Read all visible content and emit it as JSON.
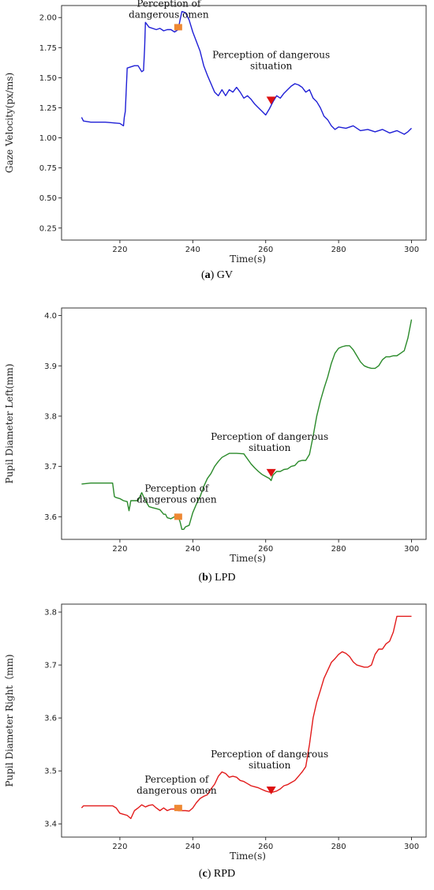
{
  "chart_data": [
    {
      "type": "line",
      "caption_letter": "a",
      "caption_text": "GV",
      "xlabel": "Time(s)",
      "ylabel": "Gaze Velocity(px/ms)",
      "xlim": [
        204,
        304
      ],
      "ylim": [
        0.15,
        2.1
      ],
      "xticks": [
        220,
        240,
        260,
        280,
        300
      ],
      "yticks": [
        0.25,
        0.5,
        0.75,
        1.0,
        1.25,
        1.5,
        1.75,
        2.0
      ],
      "ytick_labels": [
        "0.25",
        "0.50",
        "0.75",
        "1.00",
        "1.25",
        "1.50",
        "1.75",
        "2.00"
      ],
      "color": "#1f1fd6",
      "series": [
        {
          "x": [
            209.5,
            210,
            212,
            216,
            220,
            221,
            221.2,
            221.5,
            222,
            224,
            225,
            226,
            226.5,
            226.8,
            227,
            228,
            230,
            231,
            232,
            233,
            234,
            235,
            236,
            236.5,
            237,
            238,
            239,
            240,
            242,
            243,
            244,
            245,
            246,
            247,
            248,
            249,
            250,
            251,
            252,
            253,
            254,
            255,
            256,
            257,
            258,
            259,
            260,
            261,
            262,
            263,
            264,
            265,
            266,
            267,
            268,
            269,
            270,
            271,
            272,
            273,
            274,
            275,
            276,
            277,
            278,
            279,
            280,
            282,
            284,
            286,
            288,
            290,
            292,
            294,
            296,
            298,
            299,
            300
          ],
          "y": [
            1.17,
            1.14,
            1.13,
            1.13,
            1.12,
            1.1,
            1.17,
            1.22,
            1.58,
            1.6,
            1.6,
            1.55,
            1.56,
            1.75,
            1.96,
            1.92,
            1.9,
            1.91,
            1.89,
            1.9,
            1.9,
            1.88,
            1.9,
            1.98,
            2.05,
            2.04,
            1.98,
            1.88,
            1.72,
            1.6,
            1.52,
            1.45,
            1.38,
            1.35,
            1.4,
            1.35,
            1.4,
            1.38,
            1.42,
            1.38,
            1.33,
            1.35,
            1.32,
            1.28,
            1.25,
            1.22,
            1.19,
            1.24,
            1.3,
            1.35,
            1.33,
            1.37,
            1.4,
            1.43,
            1.45,
            1.44,
            1.42,
            1.38,
            1.4,
            1.33,
            1.3,
            1.25,
            1.18,
            1.15,
            1.1,
            1.07,
            1.09,
            1.08,
            1.1,
            1.06,
            1.07,
            1.05,
            1.07,
            1.04,
            1.06,
            1.03,
            1.05,
            1.08
          ]
        }
      ],
      "markers": [
        {
          "x": 236,
          "y": 1.92,
          "color": "#ee8833",
          "shape": "square",
          "label_lines": [
            "Perception of",
            "dangerous omen"
          ]
        },
        {
          "x": 261.5,
          "y": 1.31,
          "color": "#dd1111",
          "shape": "triangle",
          "label_lines": [
            "Perception of dangerous",
            "situation"
          ]
        }
      ]
    },
    {
      "type": "line",
      "caption_letter": "b",
      "caption_text": "LPD",
      "xlabel": "Time(s)",
      "ylabel": "Pupil Diameter Left(mm)",
      "xlim": [
        204,
        304
      ],
      "ylim": [
        3.555,
        4.015
      ],
      "xticks": [
        220,
        240,
        260,
        280,
        300
      ],
      "yticks": [
        3.6,
        3.7,
        3.8,
        3.9,
        4.0
      ],
      "ytick_labels": [
        "3.6",
        "3.7",
        "3.8",
        "3.9",
        "4.0"
      ],
      "color": "#2a8a2a",
      "series": [
        {
          "x": [
            209.5,
            212,
            214,
            216,
            218,
            218.5,
            219,
            220,
            221,
            222,
            222.5,
            223,
            224,
            225,
            225.5,
            226,
            227,
            228,
            229,
            230,
            231,
            232,
            232.5,
            233,
            234,
            235,
            236,
            236.5,
            237,
            237.5,
            238,
            239,
            240,
            241,
            242,
            243,
            244,
            245,
            246,
            247,
            248,
            250,
            252,
            254,
            256,
            257,
            258,
            259,
            260,
            261,
            261.5,
            262,
            263,
            264,
            265,
            266,
            267,
            268,
            269,
            270,
            271,
            272,
            273,
            274,
            275,
            276,
            277,
            278,
            279,
            280,
            281,
            282,
            283,
            284,
            285,
            286,
            287,
            288,
            289,
            290,
            291,
            292,
            293,
            294,
            295,
            296,
            297,
            298,
            299,
            300
          ],
          "y": [
            3.665,
            3.667,
            3.667,
            3.667,
            3.667,
            3.64,
            3.638,
            3.636,
            3.632,
            3.63,
            3.612,
            3.632,
            3.632,
            3.632,
            3.64,
            3.648,
            3.632,
            3.62,
            3.618,
            3.616,
            3.614,
            3.605,
            3.605,
            3.598,
            3.596,
            3.6,
            3.6,
            3.59,
            3.575,
            3.575,
            3.58,
            3.583,
            3.608,
            3.625,
            3.64,
            3.66,
            3.676,
            3.686,
            3.7,
            3.71,
            3.718,
            3.726,
            3.726,
            3.725,
            3.705,
            3.697,
            3.69,
            3.684,
            3.68,
            3.676,
            3.672,
            3.683,
            3.69,
            3.69,
            3.694,
            3.695,
            3.7,
            3.702,
            3.71,
            3.712,
            3.712,
            3.724,
            3.76,
            3.8,
            3.83,
            3.855,
            3.878,
            3.905,
            3.925,
            3.935,
            3.938,
            3.94,
            3.94,
            3.932,
            3.92,
            3.908,
            3.9,
            3.897,
            3.895,
            3.895,
            3.9,
            3.912,
            3.918,
            3.918,
            3.92,
            3.92,
            3.925,
            3.93,
            3.955,
            3.992
          ]
        }
      ],
      "markers": [
        {
          "x": 236,
          "y": 3.6,
          "color": "#ee8833",
          "shape": "square",
          "label_lines": [
            "Perception of",
            "dangerous omen"
          ]
        },
        {
          "x": 261.5,
          "y": 3.687,
          "color": "#dd1111",
          "shape": "triangle",
          "label_lines": [
            "Perception of dangerous",
            "situation"
          ]
        }
      ]
    },
    {
      "type": "line",
      "caption_letter": "c",
      "caption_text": "RPD",
      "xlabel": "Time(s)",
      "ylabel": "Pupil Diameter Right（mm)",
      "xlim": [
        204,
        304
      ],
      "ylim": [
        3.375,
        3.815
      ],
      "xticks": [
        220,
        240,
        260,
        280,
        300
      ],
      "yticks": [
        3.4,
        3.5,
        3.6,
        3.7,
        3.8
      ],
      "ytick_labels": [
        "3.4",
        "3.5",
        "3.6",
        "3.7",
        "3.8"
      ],
      "color": "#e21b1b",
      "series": [
        {
          "x": [
            209.5,
            210,
            212,
            214,
            216,
            218,
            219,
            220,
            221,
            222,
            223,
            224,
            225,
            226,
            227,
            228,
            229,
            230,
            231,
            232,
            233,
            234,
            235,
            236,
            237,
            238,
            239,
            240,
            241,
            242,
            243,
            244,
            245,
            246,
            247,
            248,
            249,
            250,
            251,
            252,
            253,
            254,
            255,
            256,
            257,
            258,
            259,
            260,
            261,
            262,
            263,
            264,
            265,
            266,
            267,
            268,
            269,
            270,
            271,
            272,
            273,
            274,
            275,
            276,
            277,
            278,
            279,
            280,
            281,
            282,
            283,
            284,
            285,
            286,
            287,
            288,
            289,
            290,
            291,
            292,
            293,
            294,
            295,
            296,
            297,
            298,
            299,
            300
          ],
          "y": [
            3.43,
            3.434,
            3.434,
            3.434,
            3.434,
            3.434,
            3.43,
            3.42,
            3.418,
            3.416,
            3.41,
            3.425,
            3.43,
            3.436,
            3.432,
            3.435,
            3.436,
            3.43,
            3.425,
            3.43,
            3.425,
            3.428,
            3.428,
            3.425,
            3.425,
            3.425,
            3.424,
            3.43,
            3.44,
            3.448,
            3.452,
            3.455,
            3.466,
            3.475,
            3.49,
            3.498,
            3.495,
            3.488,
            3.49,
            3.488,
            3.482,
            3.48,
            3.476,
            3.472,
            3.47,
            3.468,
            3.465,
            3.462,
            3.46,
            3.46,
            3.462,
            3.466,
            3.472,
            3.474,
            3.478,
            3.482,
            3.49,
            3.498,
            3.508,
            3.55,
            3.6,
            3.63,
            3.652,
            3.675,
            3.69,
            3.705,
            3.712,
            3.72,
            3.725,
            3.722,
            3.716,
            3.706,
            3.7,
            3.698,
            3.696,
            3.696,
            3.7,
            3.72,
            3.73,
            3.73,
            3.74,
            3.745,
            3.762,
            3.792,
            3.792,
            3.792,
            3.792,
            3.792
          ]
        }
      ],
      "markers": [
        {
          "x": 236,
          "y": 3.43,
          "color": "#ee8833",
          "shape": "square",
          "label_lines": [
            "Perception of",
            "dangerous omen"
          ]
        },
        {
          "x": 261.5,
          "y": 3.463,
          "color": "#dd1111",
          "shape": "triangle",
          "label_lines": [
            "Perception of dangerous",
            "situation"
          ]
        }
      ]
    }
  ]
}
